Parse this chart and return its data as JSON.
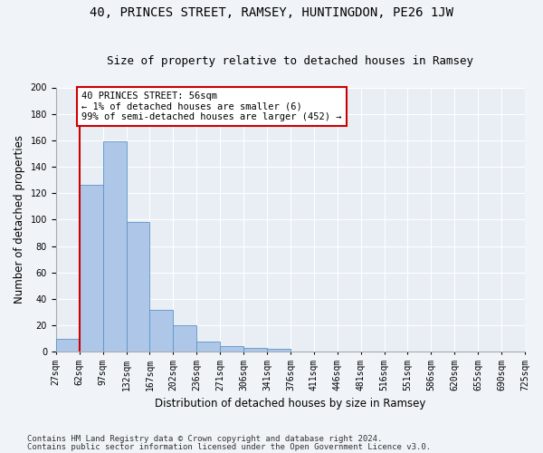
{
  "title1": "40, PRINCES STREET, RAMSEY, HUNTINGDON, PE26 1JW",
  "title2": "Size of property relative to detached houses in Ramsey",
  "xlabel": "Distribution of detached houses by size in Ramsey",
  "ylabel": "Number of detached properties",
  "footer1": "Contains HM Land Registry data © Crown copyright and database right 2024.",
  "footer2": "Contains public sector information licensed under the Open Government Licence v3.0.",
  "bins": [
    "27sqm",
    "62sqm",
    "97sqm",
    "132sqm",
    "167sqm",
    "202sqm",
    "236sqm",
    "271sqm",
    "306sqm",
    "341sqm",
    "376sqm",
    "411sqm",
    "446sqm",
    "481sqm",
    "516sqm",
    "551sqm",
    "586sqm",
    "620sqm",
    "655sqm",
    "690sqm",
    "725sqm"
  ],
  "bar_values": [
    10,
    126,
    159,
    98,
    32,
    20,
    8,
    4,
    3,
    2,
    0,
    0,
    0,
    0,
    0,
    0,
    0,
    0,
    0,
    0
  ],
  "bar_color": "#aec6e8",
  "bar_edge_color": "#5a96c8",
  "property_line_x": 1,
  "property_line_color": "#cc0000",
  "annotation_text": "40 PRINCES STREET: 56sqm\n← 1% of detached houses are smaller (6)\n99% of semi-detached houses are larger (452) →",
  "annotation_box_color": "#ffffff",
  "annotation_box_edge_color": "#cc0000",
  "ylim": [
    0,
    200
  ],
  "yticks": [
    0,
    20,
    40,
    60,
    80,
    100,
    120,
    140,
    160,
    180,
    200
  ],
  "bg_color": "#e8eef4",
  "grid_color": "#ffffff",
  "title1_fontsize": 10,
  "title2_fontsize": 9,
  "axis_label_fontsize": 8.5,
  "tick_fontsize": 7,
  "footer_fontsize": 6.5,
  "annotation_fontsize": 7.5
}
